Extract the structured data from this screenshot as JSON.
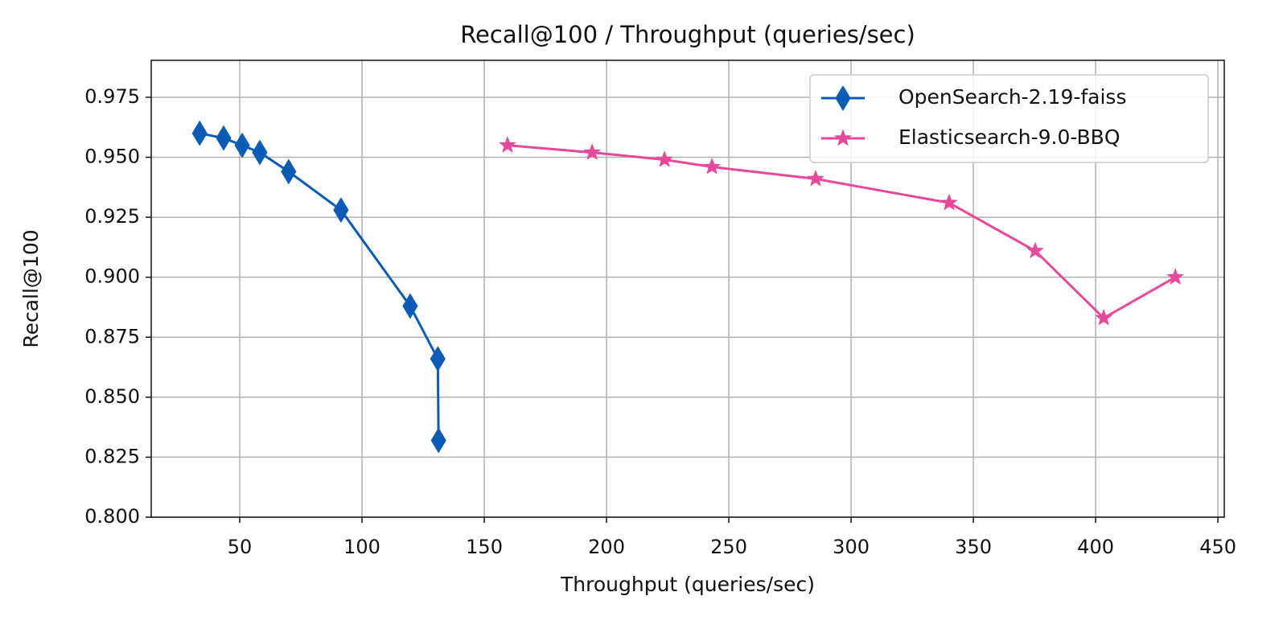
{
  "chart_data": {
    "type": "line",
    "title": "Recall@100 / Throughput (queries/sec)",
    "x_label": "Throughput (queries/sec)",
    "y_label": "Recall@100",
    "xlim": [
      13.8,
      452.6
    ],
    "ylim": [
      0.8,
      0.9904
    ],
    "xticks": [
      50,
      100,
      150,
      200,
      250,
      300,
      350,
      400,
      450
    ],
    "yticks": [
      {
        "value": 0.8,
        "label": "0.800"
      },
      0.825,
      {
        "value": 0.85,
        "label": "0.850"
      },
      0.875,
      {
        "value": 0.9,
        "label": "0.900"
      },
      0.925,
      {
        "value": 0.95,
        "label": "0.950"
      },
      0.975
    ],
    "grid": true,
    "legend": "upper right",
    "series": [
      {
        "name": "OpenSearch-2.19-faiss",
        "color": "#0a5cb8",
        "marker": "diamond",
        "x": [
          33.6,
          43.4,
          51.0,
          58.2,
          70.0,
          91.4,
          119.7,
          131.0,
          131.3
        ],
        "values": [
          0.96,
          0.958,
          0.955,
          0.952,
          0.944,
          0.928,
          0.888,
          0.866,
          0.832
        ]
      },
      {
        "name": "Elasticsearch-9.0-BBQ",
        "color": "#e8489a",
        "marker": "star",
        "x": [
          159.5,
          194.1,
          223.7,
          243.1,
          285.5,
          340.1,
          375.3,
          403.3,
          432.6
        ],
        "values": [
          0.955,
          0.952,
          0.949,
          0.946,
          0.941,
          0.931,
          0.911,
          0.883,
          0.9
        ]
      }
    ]
  }
}
